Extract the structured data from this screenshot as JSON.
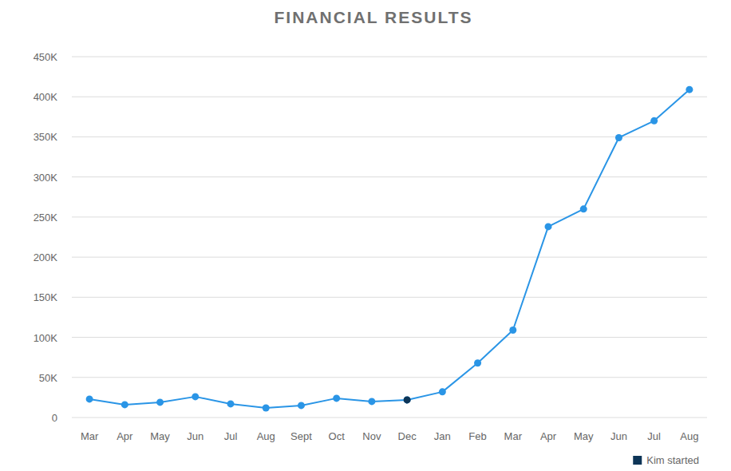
{
  "chart_data": {
    "type": "line",
    "title": "FINANCIAL RESULTS",
    "categories": [
      "Mar",
      "Apr",
      "May",
      "Jun",
      "Jul",
      "Aug",
      "Sept",
      "Oct",
      "Nov",
      "Dec",
      "Jan",
      "Feb",
      "Mar",
      "Apr",
      "May",
      "Jun",
      "Jul",
      "Aug"
    ],
    "series": [
      {
        "color": "#2a95e6",
        "marker": "circle",
        "values": [
          23000,
          16000,
          19000,
          26000,
          17000,
          12000,
          15000,
          24000,
          20000,
          22000,
          32000,
          68000,
          109000,
          238000,
          260000,
          349000,
          370000,
          409000
        ]
      },
      {
        "name": "Kim started",
        "type": "scatter",
        "color": "#0d3557",
        "marker": "circle",
        "values": [
          null,
          null,
          null,
          null,
          null,
          null,
          null,
          null,
          null,
          22000,
          null,
          null,
          null,
          null,
          null,
          null,
          null,
          null
        ]
      }
    ],
    "ylim": [
      0,
      450000
    ],
    "yticks": [
      0,
      {
        "value": 50000,
        "label": "50K"
      },
      {
        "value": 100000,
        "label": "100K"
      },
      {
        "value": 150000,
        "label": "150K"
      },
      {
        "value": 200000,
        "label": "200K"
      },
      {
        "value": 250000,
        "label": "250K"
      },
      {
        "value": 300000,
        "label": "300K"
      },
      {
        "value": 350000,
        "label": "350K"
      },
      {
        "value": 400000,
        "label": "400K"
      },
      {
        "value": 450000,
        "label": "450K"
      }
    ],
    "grid": true,
    "legend": "bottom-right"
  }
}
